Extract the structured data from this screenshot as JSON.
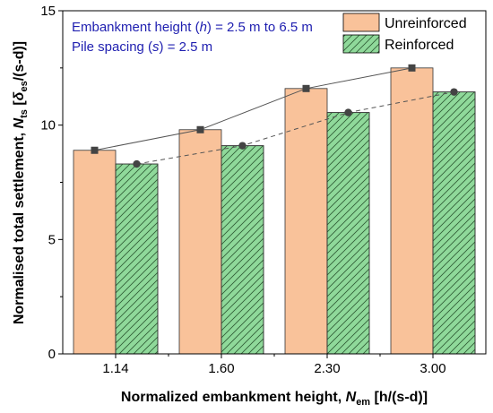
{
  "chart_data": {
    "type": "bar",
    "categories": [
      "1.14",
      "1.60",
      "2.30",
      "3.00"
    ],
    "series": [
      {
        "name": "Unreinforced",
        "values": [
          8.9,
          9.8,
          11.6,
          12.5
        ],
        "color": "#f9c29a",
        "hatch": false
      },
      {
        "name": "Reinforced",
        "values": [
          8.3,
          9.1,
          10.55,
          11.45
        ],
        "color": "#8fd99a",
        "hatch": true
      }
    ],
    "trend_lines": [
      {
        "series": "Unreinforced",
        "style": "solid",
        "color": "#555555"
      },
      {
        "series": "Reinforced",
        "style": "dashed",
        "color": "#555555"
      }
    ],
    "ylim": [
      0,
      15
    ],
    "yticks": [
      "0",
      "5",
      "10",
      "15"
    ],
    "ylabel_parts": [
      "Normalised total settlement, ",
      "N",
      "ts",
      " [",
      "δ",
      "es",
      "/(s-d)]"
    ],
    "xlabel_parts": [
      "Normalized embankment height, ",
      "N",
      "em",
      " [h/(s-d)]"
    ],
    "annotations": [
      {
        "parts": [
          "Embankment height (",
          "h",
          ") = 2.5 m to 6.5 m"
        ]
      },
      {
        "parts": [
          "Pile spacing (",
          "s",
          ") = 2.5 m"
        ]
      }
    ],
    "legend_position": "top-right",
    "grid": false
  }
}
